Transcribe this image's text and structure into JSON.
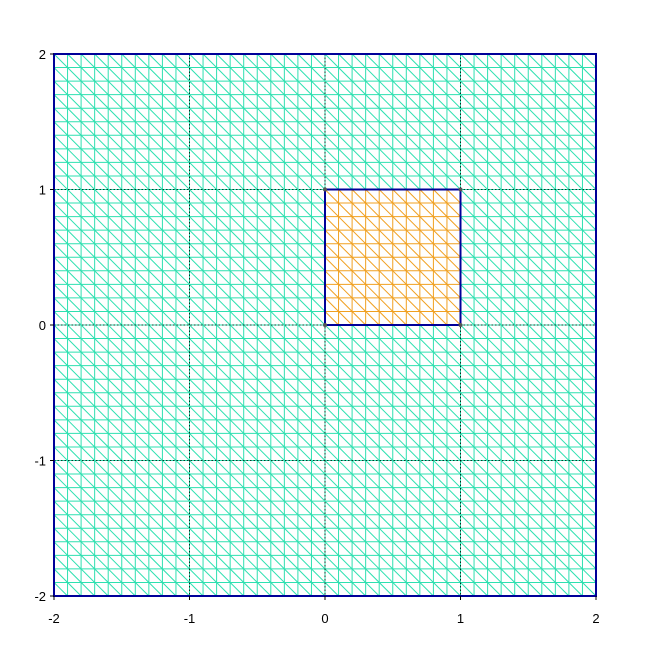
{
  "chart_data": {
    "type": "mesh",
    "xlim": [
      -2,
      2
    ],
    "ylim": [
      -2,
      2
    ],
    "mesh": {
      "divisions_per_unit": 10,
      "diagonal": "top-left-to-bottom-right",
      "outer_color": "#2ee0b0",
      "inner_color": "#f0a020"
    },
    "outer_domain": {
      "x": [
        -2,
        2
      ],
      "y": [
        -2,
        2
      ]
    },
    "inner_domain": {
      "x": [
        0,
        1
      ],
      "y": [
        0,
        1
      ]
    },
    "boundary_color": "#000099",
    "grid": {
      "on": true,
      "style": "dotted",
      "x": [
        -1,
        0,
        1
      ],
      "y": [
        -1,
        0,
        1
      ]
    },
    "x_ticks": [
      {
        "value": -2,
        "label": "-2"
      },
      {
        "value": -1,
        "label": "-1"
      },
      {
        "value": 0,
        "label": "0"
      },
      {
        "value": 1,
        "label": "1"
      },
      {
        "value": 2,
        "label": "2"
      }
    ],
    "y_ticks": [
      {
        "value": -2,
        "label": "-2"
      },
      {
        "value": -1,
        "label": "-1"
      },
      {
        "value": 0,
        "label": "0"
      },
      {
        "value": 1,
        "label": "1"
      },
      {
        "value": 2,
        "label": "2"
      }
    ]
  }
}
